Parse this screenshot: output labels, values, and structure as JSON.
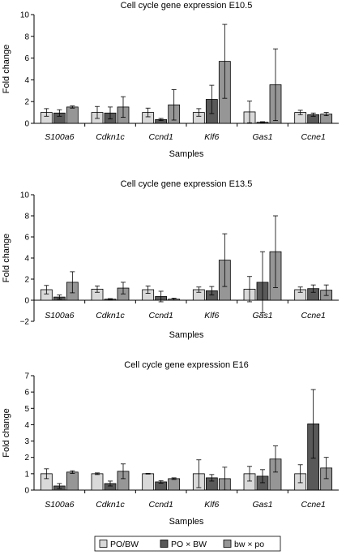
{
  "legend": {
    "entries": [
      {
        "label": "PO/BW",
        "color": "#d9d9d9"
      },
      {
        "label": "PO × BW",
        "color": "#595959"
      },
      {
        "label": "bw × po",
        "color": "#969696"
      }
    ]
  },
  "chart_data": [
    {
      "type": "bar",
      "title": "Cell cycle gene expression E10.5",
      "xlabel": "Samples",
      "ylabel": "Fold change",
      "ylim": [
        0,
        10
      ],
      "yticks": [
        0,
        2,
        4,
        6,
        8,
        10
      ],
      "grid": false,
      "categories": [
        "S100a6",
        "Cdkn1c",
        "Ccnd1",
        "Klf6",
        "Gas1",
        "Ccne1"
      ],
      "series": [
        {
          "name": "PO/BW",
          "values": [
            1.0,
            1.0,
            1.0,
            1.0,
            1.05,
            1.0
          ],
          "errors": [
            0.35,
            0.55,
            0.4,
            0.35,
            1.0,
            0.2
          ]
        },
        {
          "name": "PO × BW",
          "values": [
            0.95,
            0.95,
            0.35,
            2.2,
            0.1,
            0.8
          ],
          "errors": [
            0.3,
            0.55,
            0.1,
            1.3,
            0.05,
            0.15
          ]
        },
        {
          "name": "bw × po",
          "values": [
            1.5,
            1.5,
            1.7,
            5.7,
            3.55,
            0.85
          ],
          "errors": [
            0.1,
            0.95,
            1.4,
            3.4,
            3.3,
            0.15
          ]
        }
      ]
    },
    {
      "type": "bar",
      "title": "Cell cycle gene expression E13.5",
      "xlabel": "Samples",
      "ylabel": "Fold change",
      "ylim": [
        -2,
        10
      ],
      "yticks": [
        -2,
        0,
        2,
        4,
        6,
        8,
        10
      ],
      "grid": false,
      "categories": [
        "S100a6",
        "Cdkn1c",
        "Ccnd1",
        "Klf6",
        "Gas1",
        "Ccne1"
      ],
      "series": [
        {
          "name": "PO/BW",
          "values": [
            1.0,
            1.05,
            1.0,
            1.0,
            1.05,
            1.0
          ],
          "errors": [
            0.4,
            0.3,
            0.35,
            0.25,
            1.2,
            0.25
          ]
        },
        {
          "name": "PO × BW",
          "values": [
            0.3,
            0.1,
            0.35,
            0.9,
            1.7,
            1.1
          ],
          "errors": [
            0.2,
            0.05,
            0.5,
            0.4,
            2.9,
            0.35
          ]
        },
        {
          "name": "bw × po",
          "values": [
            1.7,
            1.15,
            0.1,
            3.8,
            4.6,
            0.95
          ],
          "errors": [
            1.0,
            0.55,
            0.1,
            2.5,
            3.4,
            0.5
          ]
        }
      ]
    },
    {
      "type": "bar",
      "title": "Cell cycle gene expression E16",
      "xlabel": "Samples",
      "ylabel": "Fold change",
      "ylim": [
        0,
        7
      ],
      "yticks": [
        0,
        1,
        2,
        3,
        4,
        5,
        6,
        7
      ],
      "grid": false,
      "categories": [
        "S100a6",
        "Cdkn1c",
        "Ccnd1",
        "Klf6",
        "Gas1",
        "Ccne1"
      ],
      "series": [
        {
          "name": "PO/BW",
          "values": [
            1.0,
            1.0,
            1.0,
            1.0,
            1.0,
            1.0
          ],
          "errors": [
            0.3,
            0.05,
            0.02,
            0.85,
            0.45,
            0.55
          ]
        },
        {
          "name": "PO × BW",
          "values": [
            0.25,
            0.4,
            0.5,
            0.75,
            0.85,
            4.05
          ],
          "errors": [
            0.15,
            0.15,
            0.08,
            0.2,
            0.4,
            2.1
          ]
        },
        {
          "name": "bw × po",
          "values": [
            1.1,
            1.15,
            0.7,
            0.7,
            1.9,
            1.35
          ],
          "errors": [
            0.08,
            0.45,
            0.05,
            0.7,
            0.8,
            0.65
          ]
        }
      ]
    }
  ]
}
